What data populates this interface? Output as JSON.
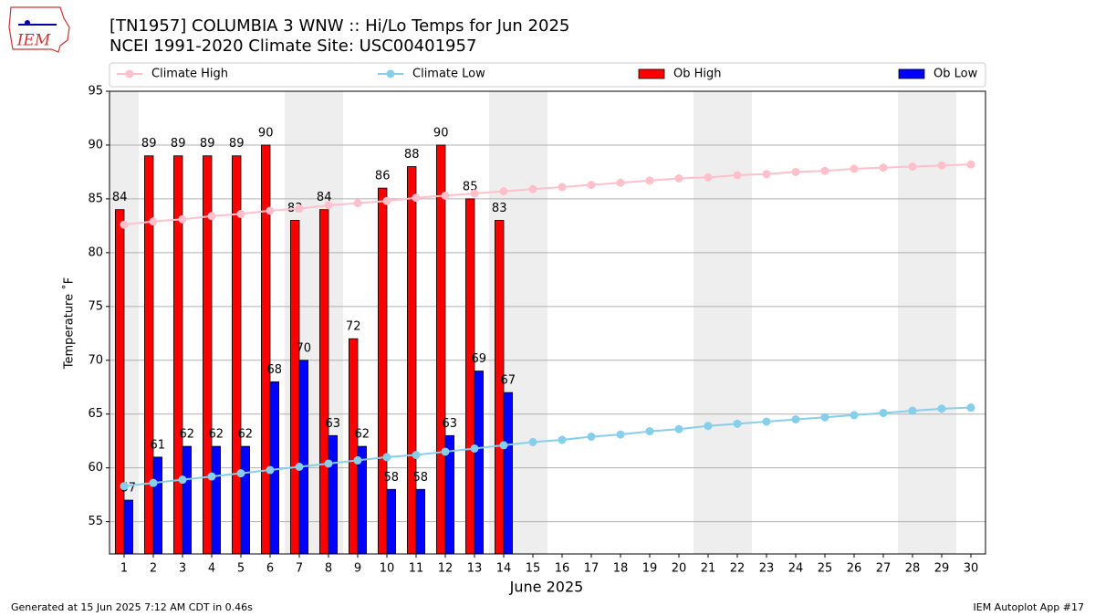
{
  "logo_text": "IEM",
  "footer_left": "Generated at 15 Jun 2025 7:12 AM CDT in 0.46s",
  "footer_right": "IEM Autoplot App #17",
  "chart_data": {
    "type": "bar",
    "title": "[TN1957] COLUMBIA 3 WNW :: Hi/Lo Temps for Jun 2025",
    "subtitle": "NCEI 1991-2020 Climate Site: USC00401957",
    "xlabel": "June 2025",
    "ylabel": "Temperature ˚F",
    "x": [
      1,
      2,
      3,
      4,
      5,
      6,
      7,
      8,
      9,
      10,
      11,
      12,
      13,
      14,
      15,
      16,
      17,
      18,
      19,
      20,
      21,
      22,
      23,
      24,
      25,
      26,
      27,
      28,
      29,
      30
    ],
    "xlim": [
      0.5,
      30.5
    ],
    "xticks": [
      1,
      2,
      3,
      4,
      5,
      6,
      7,
      8,
      9,
      10,
      11,
      12,
      13,
      14,
      15,
      16,
      17,
      18,
      19,
      20,
      21,
      22,
      23,
      24,
      25,
      26,
      27,
      28,
      29,
      30
    ],
    "ylim": [
      52,
      95
    ],
    "yticks": [
      55,
      60,
      65,
      70,
      75,
      80,
      85,
      90,
      95
    ],
    "grid": true,
    "shade_ranges": [
      [
        0.5,
        1.5
      ],
      [
        6.5,
        8.5
      ],
      [
        13.5,
        15.5
      ],
      [
        20.5,
        22.5
      ],
      [
        27.5,
        29.5
      ]
    ],
    "shade_color": "#eeeeee",
    "legend": "top",
    "series": [
      {
        "name": "Climate High",
        "kind": "line",
        "color": "#ffc0cb",
        "values": [
          82.6,
          82.9,
          83.1,
          83.4,
          83.6,
          83.9,
          84.1,
          84.4,
          84.6,
          84.8,
          85.1,
          85.3,
          85.5,
          85.7,
          85.9,
          86.1,
          86.3,
          86.5,
          86.7,
          86.9,
          87.0,
          87.2,
          87.3,
          87.5,
          87.6,
          87.8,
          87.9,
          88.0,
          88.1,
          88.2
        ]
      },
      {
        "name": "Climate Low",
        "kind": "line",
        "color": "#87ceeb",
        "values": [
          58.3,
          58.6,
          58.9,
          59.2,
          59.5,
          59.8,
          60.1,
          60.4,
          60.7,
          61.0,
          61.2,
          61.5,
          61.8,
          62.1,
          62.4,
          62.6,
          62.9,
          63.1,
          63.4,
          63.6,
          63.9,
          64.1,
          64.3,
          64.5,
          64.7,
          64.9,
          65.1,
          65.3,
          65.5,
          65.6
        ]
      },
      {
        "name": "Ob High",
        "kind": "bar",
        "offset": -0.15,
        "width": 0.3,
        "color": "#ff0000",
        "values": [
          84,
          89,
          89,
          89,
          89,
          90,
          83,
          84,
          72,
          86,
          88,
          90,
          85,
          83,
          null,
          null,
          null,
          null,
          null,
          null,
          null,
          null,
          null,
          null,
          null,
          null,
          null,
          null,
          null,
          null
        ]
      },
      {
        "name": "Ob Low",
        "kind": "bar",
        "offset": 0.15,
        "width": 0.3,
        "color": "#0000ff",
        "values": [
          57,
          61,
          62,
          62,
          62,
          68,
          70,
          63,
          62,
          58,
          58,
          63,
          69,
          67,
          null,
          null,
          null,
          null,
          null,
          null,
          null,
          null,
          null,
          null,
          null,
          null,
          null,
          null,
          null,
          null
        ]
      }
    ]
  }
}
